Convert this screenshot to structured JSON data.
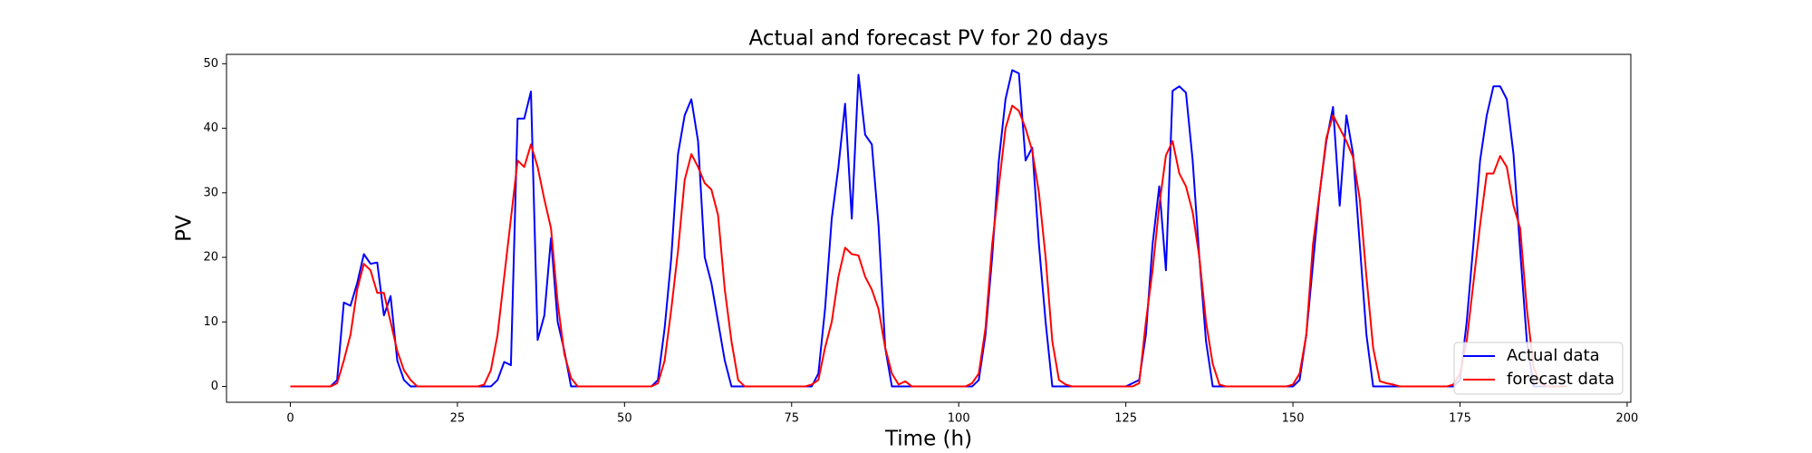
{
  "chart_data": {
    "type": "line",
    "title": "Actual and forecast PV for 20 days",
    "xlabel": "Time (h)",
    "ylabel": "PV",
    "x": [
      0,
      1,
      2,
      3,
      4,
      5,
      6,
      7,
      8,
      9,
      10,
      11,
      12,
      13,
      14,
      15,
      16,
      17,
      18,
      19,
      20,
      21,
      22,
      23,
      24,
      25,
      26,
      27,
      28,
      29,
      30,
      31,
      32,
      33,
      34,
      35,
      36,
      37,
      38,
      39,
      40,
      41,
      42,
      43,
      44,
      45,
      46,
      47,
      48,
      49,
      50,
      51,
      52,
      53,
      54,
      55,
      56,
      57,
      58,
      59,
      60,
      61,
      62,
      63,
      64,
      65,
      66,
      67,
      68,
      69,
      70,
      71,
      72,
      73,
      74,
      75,
      76,
      77,
      78,
      79,
      80,
      81,
      82,
      83,
      84,
      85,
      86,
      87,
      88,
      89,
      90,
      91,
      92,
      93,
      94,
      95,
      96,
      97,
      98,
      99,
      100,
      101,
      102,
      103,
      104,
      105,
      106,
      107,
      108,
      109,
      110,
      111,
      112,
      113,
      114,
      115,
      116,
      117,
      118,
      119,
      120,
      121,
      122,
      123,
      124,
      125,
      126,
      127,
      128,
      129,
      130,
      131,
      132,
      133,
      134,
      135,
      136,
      137,
      138,
      139,
      140,
      141,
      142,
      143,
      144,
      145,
      146,
      147,
      148,
      149,
      150,
      151,
      152,
      153,
      154,
      155,
      156,
      157,
      158,
      159,
      160,
      161,
      162,
      163,
      164,
      165,
      166,
      167,
      168,
      169,
      170,
      171,
      172,
      173,
      174,
      175,
      176,
      177,
      178,
      179,
      180,
      181,
      182,
      183,
      184,
      185,
      186,
      187,
      188,
      189,
      190,
      191
    ],
    "series": [
      {
        "name": "Actual data",
        "color": "#0000ff",
        "values": [
          0,
          0,
          0,
          0,
          0,
          0,
          0,
          1,
          13,
          12.5,
          16,
          20.5,
          19,
          19.2,
          11,
          14,
          4,
          1,
          0,
          0,
          0,
          0,
          0,
          0,
          0,
          0,
          0,
          0,
          0,
          0,
          0,
          1,
          3.8,
          3.3,
          41.5,
          41.5,
          45.7,
          7.2,
          11,
          23,
          10,
          5.5,
          0,
          0,
          0,
          0,
          0,
          0,
          0,
          0,
          0,
          0,
          0,
          0,
          0,
          1,
          9,
          20,
          36,
          42,
          44.5,
          38,
          20,
          16,
          10,
          4,
          0,
          0,
          0,
          0,
          0,
          0,
          0,
          0,
          0,
          0,
          0,
          0,
          0,
          2,
          12,
          26,
          34,
          43.8,
          26,
          48.3,
          39,
          37.5,
          25,
          6,
          0,
          0,
          0,
          0,
          0,
          0,
          0,
          0,
          0,
          0,
          0,
          0,
          0,
          1,
          8,
          20,
          35,
          44.5,
          49,
          48.5,
          35,
          37,
          22,
          10,
          0,
          0,
          0,
          0,
          0,
          0,
          0,
          0,
          0,
          0,
          0,
          0,
          0.5,
          1,
          8,
          22,
          31,
          18,
          45.8,
          46.5,
          45.5,
          35,
          20,
          7,
          0,
          0,
          0,
          0,
          0,
          0,
          0,
          0,
          0,
          0,
          0,
          0,
          0,
          1,
          8,
          19,
          30,
          38,
          43.3,
          28,
          42,
          36,
          22,
          8,
          0,
          0,
          0,
          0,
          0,
          0,
          0,
          0,
          0,
          0,
          0,
          0,
          0,
          1,
          10,
          22,
          35,
          42,
          46.5,
          46.5,
          44.5,
          36,
          21,
          7,
          0,
          0,
          0,
          0,
          0,
          0
        ]
      },
      {
        "name": "forecast data",
        "color": "#ff0000",
        "values": [
          0,
          0,
          0,
          0,
          0,
          0,
          0,
          0.5,
          4,
          8,
          15,
          19,
          18,
          14.5,
          14.5,
          10,
          5.5,
          2.5,
          1,
          0,
          0,
          0,
          0,
          0,
          0,
          0,
          0,
          0,
          0,
          0.3,
          2.5,
          8,
          17,
          26,
          35,
          34,
          37.5,
          34,
          29,
          24.5,
          13,
          5,
          1.3,
          0,
          0,
          0,
          0,
          0,
          0,
          0,
          0,
          0,
          0,
          0,
          0,
          0.5,
          4,
          12,
          21,
          32,
          36,
          34,
          31.5,
          30.5,
          26.5,
          15,
          7,
          1,
          0,
          0,
          0,
          0,
          0,
          0,
          0,
          0,
          0,
          0,
          0.3,
          1,
          6,
          10,
          17,
          21.5,
          20.5,
          20.3,
          17,
          15,
          12,
          6,
          2,
          0.3,
          0.8,
          0,
          0,
          0,
          0,
          0,
          0,
          0,
          0,
          0,
          0.5,
          2,
          9,
          22,
          31,
          40,
          43.5,
          42.7,
          40,
          36.5,
          30,
          20,
          7,
          1,
          0.3,
          0,
          0,
          0,
          0,
          0,
          0,
          0,
          0,
          0,
          0,
          0.5,
          10,
          18,
          28,
          35.8,
          38,
          33,
          31,
          27,
          20,
          10,
          3.5,
          0.3,
          0,
          0,
          0,
          0,
          0,
          0,
          0,
          0,
          0,
          0,
          0.3,
          2,
          8,
          22,
          30,
          38.5,
          42,
          40,
          38,
          35.5,
          29,
          17,
          6,
          0.8,
          0.5,
          0.3,
          0,
          0,
          0,
          0,
          0,
          0,
          0,
          0,
          0.3,
          2,
          7,
          16,
          25,
          33,
          33,
          35.7,
          34,
          28,
          24.5,
          12,
          3,
          0.5,
          0,
          0,
          0,
          0
        ]
      }
    ],
    "xlim": [
      -9.55,
      200.55
    ],
    "xticks": [
      0,
      25,
      50,
      75,
      100,
      125,
      150,
      175,
      200
    ],
    "ylim": [
      -2.45,
      51.45
    ],
    "yticks": [
      0,
      10,
      20,
      30,
      40,
      50
    ],
    "grid": false,
    "legend": "lower right"
  }
}
